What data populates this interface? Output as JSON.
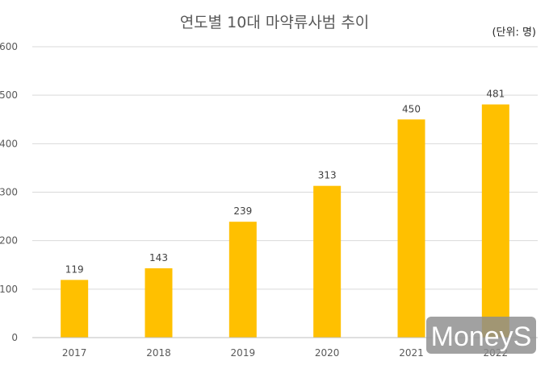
{
  "chart_data": {
    "type": "bar",
    "title": "연도별 10대 마약류사범 추이",
    "unit_label": "(단위: 명)",
    "categories": [
      "2017",
      "2018",
      "2019",
      "2020",
      "2021",
      "2022"
    ],
    "values": [
      119,
      143,
      239,
      313,
      450,
      481
    ],
    "ylim": [
      0,
      600
    ],
    "yticks": [
      0,
      100,
      200,
      300,
      400,
      500,
      600
    ],
    "grid": true,
    "bar_color": "#FFC000"
  },
  "watermark": {
    "text": "MoneyS"
  }
}
